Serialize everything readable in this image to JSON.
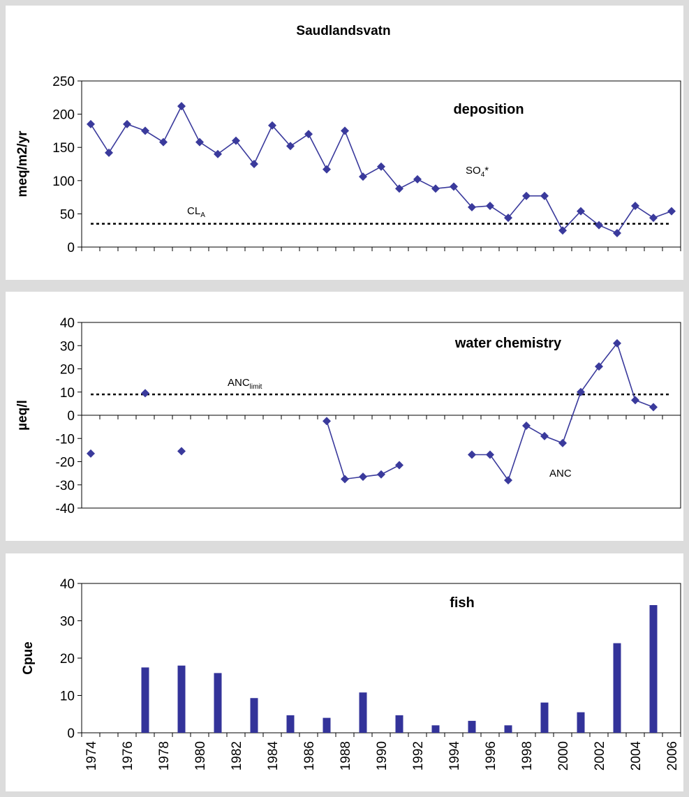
{
  "chart_data": [
    {
      "type": "line",
      "title": "Saudlandsvatn",
      "panel_label": "deposition",
      "ylabel": "meq/m2/yr",
      "ylim": [
        0,
        250
      ],
      "yticks": [
        0,
        50,
        100,
        150,
        200,
        250
      ],
      "xlim": [
        1974,
        2006
      ],
      "grid": false,
      "series": [
        {
          "label_main": "SO",
          "label_sub": "4",
          "label_suffix": "*",
          "x": [
            1974,
            1975,
            1976,
            1977,
            1978,
            1979,
            1980,
            1981,
            1982,
            1983,
            1984,
            1985,
            1986,
            1987,
            1988,
            1989,
            1990,
            1991,
            1992,
            1993,
            1994,
            1995,
            1996,
            1997,
            1998,
            1999,
            2000,
            2001,
            2002,
            2003,
            2004,
            2005,
            2006
          ],
          "values": [
            185,
            142,
            185,
            175,
            158,
            212,
            158,
            140,
            160,
            125,
            183,
            152,
            170,
            117,
            175,
            106,
            121,
            88,
            102,
            88,
            91,
            60,
            62,
            44,
            77,
            77,
            25,
            54,
            33,
            21,
            62,
            44,
            54
          ]
        }
      ],
      "reference": {
        "value": 35,
        "label_main": "CL",
        "label_sub": "A"
      }
    },
    {
      "type": "line",
      "panel_label": "water chemistry",
      "ylabel": "µeq/l",
      "ylim": [
        -40,
        40
      ],
      "yticks": [
        -40,
        -30,
        -20,
        -10,
        0,
        10,
        20,
        30,
        40
      ],
      "xlim": [
        1974,
        2006
      ],
      "grid": false,
      "series": [
        {
          "label": "ANC",
          "x": [
            1974,
            1977,
            1979,
            1987,
            1988,
            1989,
            1990,
            1991,
            1995,
            1996,
            1997,
            1998,
            1999,
            2000,
            2001,
            2002,
            2003,
            2004,
            2005
          ],
          "values": [
            -16.5,
            9.5,
            -15.5,
            -2.5,
            -27.5,
            -26.5,
            -25.5,
            -21.5,
            -17,
            -17,
            -28,
            -4.5,
            -9,
            -12,
            10,
            21,
            31,
            6.5,
            3.5
          ],
          "connected_segments": [
            [
              0,
              0
            ],
            [
              1,
              1
            ],
            [
              2,
              2
            ],
            [
              3,
              7
            ],
            [
              8,
              18
            ]
          ]
        }
      ],
      "reference": {
        "value": 9,
        "label_main": "ANC",
        "label_sub": "limit"
      }
    },
    {
      "type": "bar",
      "panel_label": "fish",
      "ylabel": "Cpue",
      "ylim": [
        0,
        40
      ],
      "yticks": [
        0,
        10,
        20,
        30,
        40
      ],
      "xlim": [
        1974,
        2006
      ],
      "grid": false,
      "xtick_labels": [
        "1974",
        "1976",
        "1978",
        "1980",
        "1982",
        "1984",
        "1986",
        "1988",
        "1990",
        "1992",
        "1994",
        "1996",
        "1998",
        "2000",
        "2002",
        "2004",
        "2006"
      ],
      "series": [
        {
          "x": [
            1977,
            1979,
            1981,
            1983,
            1985,
            1987,
            1989,
            1991,
            1993,
            1995,
            1997,
            1999,
            2001,
            2003,
            2005
          ],
          "values": [
            17.5,
            18,
            16,
            9.3,
            4.7,
            4,
            10.8,
            4.7,
            2,
            3.2,
            2,
            8.1,
            5.5,
            24,
            34.2
          ]
        }
      ]
    }
  ]
}
